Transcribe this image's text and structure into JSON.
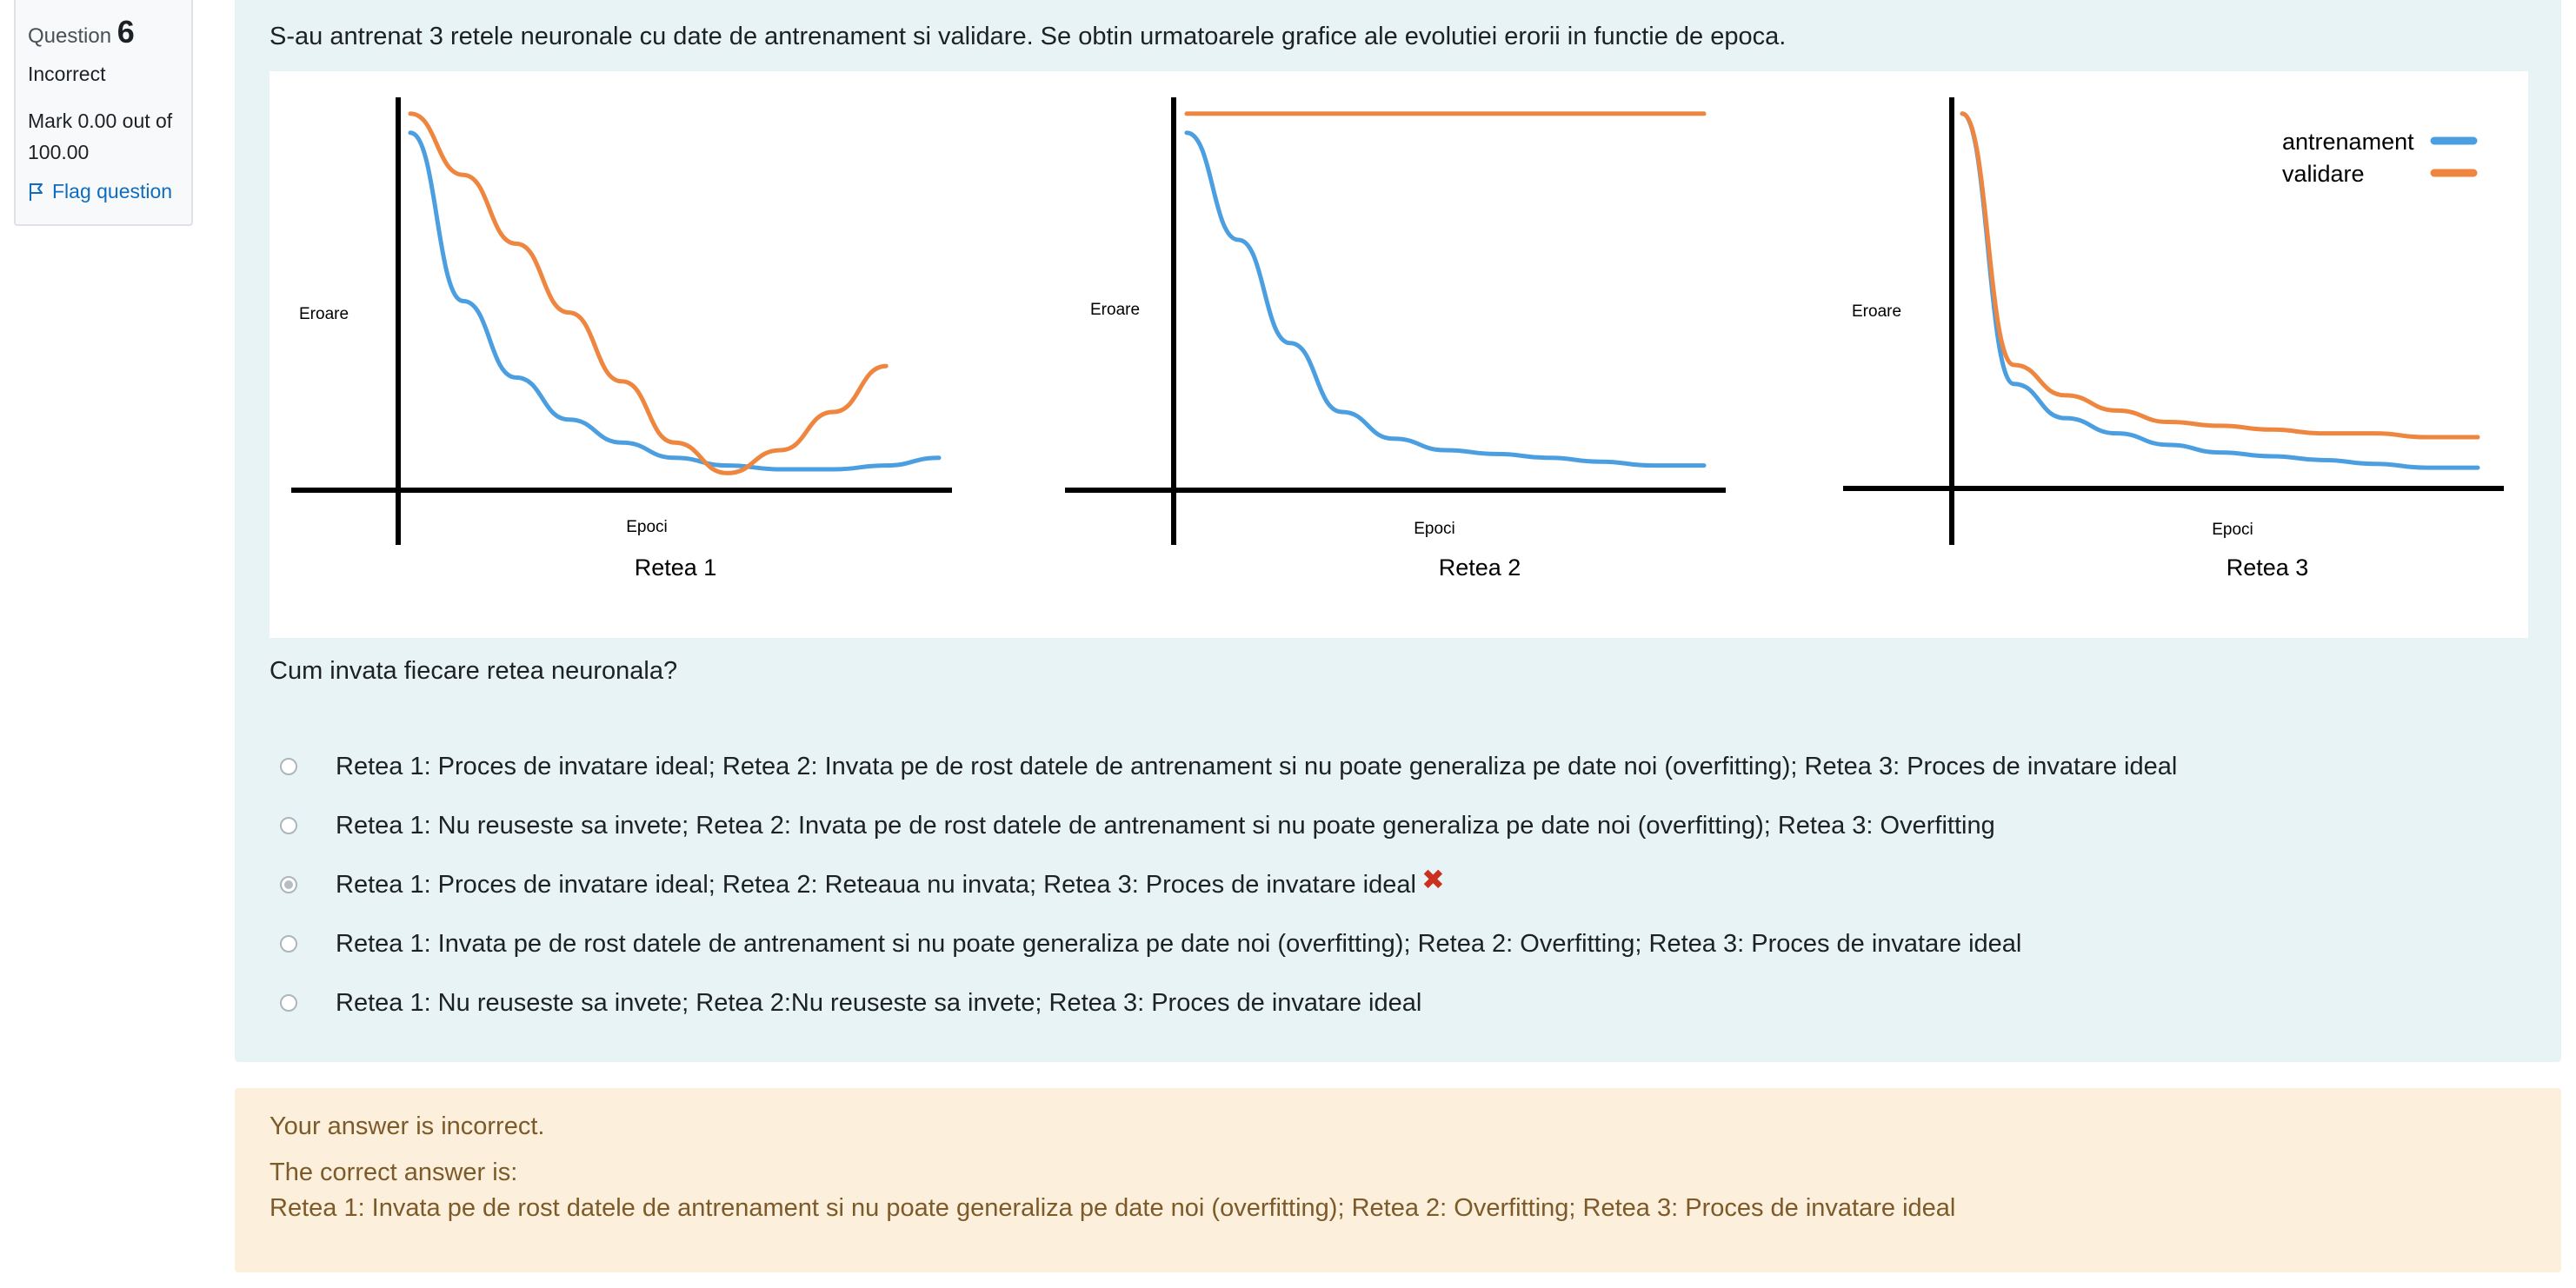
{
  "question_info": {
    "label": "Question",
    "number": "6",
    "state": "Incorrect",
    "grade": "Mark 0.00 out of 100.00",
    "flag_label": "Flag question"
  },
  "question": {
    "text": "S-au antrenat 3 retele neuronale cu date de antrenament si validare. Se obtin urmatoarele grafice ale evolutiei erorii in functie de epoca.",
    "prompt": "Cum invata fiecare retea neuronala?"
  },
  "chart_data": [
    {
      "type": "line",
      "title": "Retea 1",
      "xlabel": "Epoci",
      "ylabel": "Eroare",
      "x": [
        0,
        1,
        2,
        3,
        4,
        5,
        6,
        7,
        8,
        9,
        10
      ],
      "series": [
        {
          "values": [
            9.3,
            4.9,
            2.9,
            1.8,
            1.2,
            0.8,
            0.6,
            0.5,
            0.5,
            0.6,
            0.8
          ]
        },
        {
          "values": [
            9.8,
            8.2,
            6.4,
            4.6,
            2.8,
            1.2,
            0.4,
            1.0,
            2.0,
            3.2,
            null
          ]
        }
      ]
    },
    {
      "type": "line",
      "title": "Retea 2",
      "xlabel": "Epoci",
      "ylabel": "Eroare",
      "x": [
        0,
        1,
        2,
        3,
        4,
        5,
        6,
        7,
        8,
        9,
        10
      ],
      "series": [
        {
          "values": [
            9.3,
            6.5,
            3.8,
            2.0,
            1.3,
            1.0,
            0.9,
            0.8,
            0.7,
            0.6,
            0.6
          ]
        },
        {
          "values": [
            9.8,
            9.8,
            9.8,
            9.8,
            9.8,
            9.8,
            9.8,
            9.8,
            9.8,
            9.8,
            9.8
          ]
        }
      ]
    },
    {
      "type": "line",
      "title": "Retea 3",
      "xlabel": "Epoci",
      "ylabel": "Eroare",
      "x": [
        0,
        1,
        2,
        3,
        4,
        5,
        6,
        7,
        8,
        9,
        10
      ],
      "legend": {
        "position": "top-right"
      },
      "series": [
        {
          "name": "antrenament",
          "color": "#4b9fe0",
          "values": [
            9.8,
            2.7,
            1.8,
            1.4,
            1.1,
            0.9,
            0.8,
            0.7,
            0.6,
            0.5,
            0.5
          ]
        },
        {
          "name": "validare",
          "color": "#ee8640",
          "values": [
            9.8,
            3.2,
            2.4,
            2.0,
            1.7,
            1.6,
            1.5,
            1.4,
            1.4,
            1.3,
            1.3
          ]
        }
      ]
    }
  ],
  "answers": [
    {
      "text": "Retea 1: Proces de invatare ideal; Retea 2: Invata pe de rost datele de antrenament si nu poate generaliza pe date noi (overfitting); Retea 3: Proces de invatare ideal",
      "checked": false
    },
    {
      "text": "Retea 1: Nu reuseste sa invete; Retea 2: Invata pe de rost datele de antrenament si nu poate generaliza pe date noi (overfitting); Retea 3: Overfitting",
      "checked": false
    },
    {
      "text": "Retea 1: Proces de invatare ideal; Retea 2: Reteaua nu invata; Retea 3: Proces de invatare ideal",
      "checked": true
    },
    {
      "text": "Retea 1: Invata pe de rost datele de antrenament si nu poate generaliza pe date noi (overfitting); Retea 2: Overfitting; Retea 3: Proces de invatare ideal",
      "checked": false
    },
    {
      "text": "Retea 1: Nu reuseste sa invete; Retea 2:Nu reuseste sa invete; Retea 3: Proces de invatare ideal",
      "checked": false
    }
  ],
  "feedback": {
    "status": "Your answer is incorrect.",
    "correct_label": "The correct answer is:",
    "correct_answer": "Retea 1: Invata pe de rost datele de antrenament si nu poate generaliza pe date noi (overfitting); Retea 2: Overfitting; Retea 3: Proces de invatare ideal"
  },
  "colors": {
    "training": "#4b9fe0",
    "validation": "#ee8640",
    "incorrect": "#ca3120"
  }
}
